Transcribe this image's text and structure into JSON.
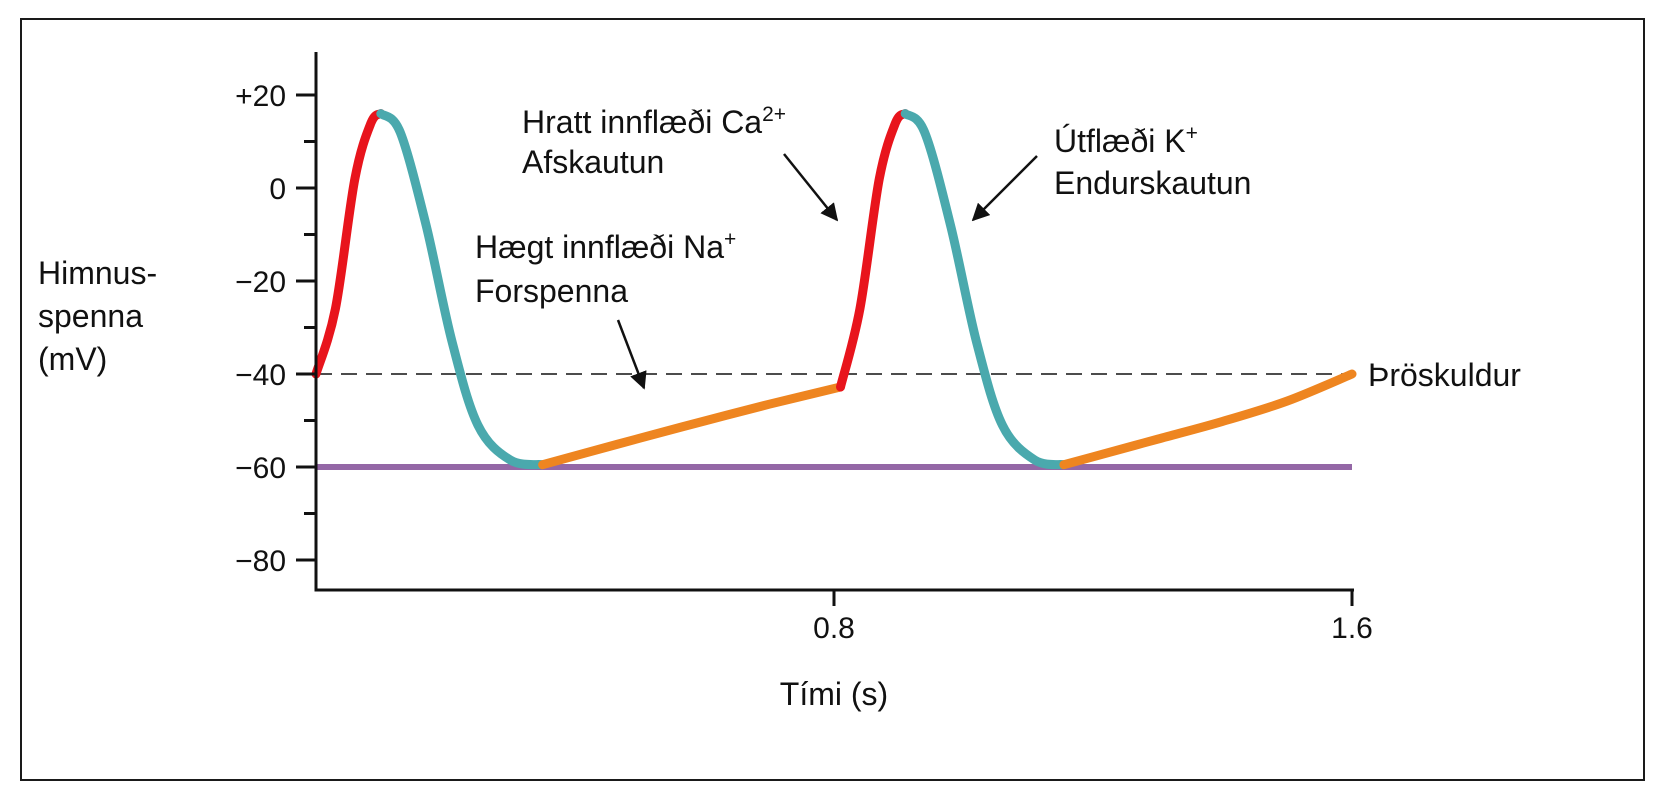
{
  "chart_data": {
    "type": "line",
    "title": "",
    "xlabel": "Tími (s)",
    "ylabel_lines": [
      "Himnus-",
      "spenna",
      "(mV)"
    ],
    "xlim": [
      0,
      1.6
    ],
    "ylim": [
      -88,
      28
    ],
    "x_ticks": [
      {
        "value": 0.8,
        "label": "0.8"
      },
      {
        "value": 1.6,
        "label": "1.6"
      }
    ],
    "y_ticks": [
      {
        "value": 20,
        "label": "+20"
      },
      {
        "value": 0,
        "label": "0"
      },
      {
        "value": -20,
        "label": "−20"
      },
      {
        "value": -40,
        "label": "−40"
      },
      {
        "value": -60,
        "label": "−60"
      },
      {
        "value": -80,
        "label": "−80"
      }
    ],
    "y_minor_ticks": [
      10,
      -10,
      -30,
      -50,
      -70
    ],
    "reference_lines": [
      {
        "kind": "threshold",
        "y": -40,
        "style": "dashed",
        "color": "#111111",
        "label": "Þröskuldur"
      },
      {
        "kind": "resting",
        "y": -60,
        "style": "solid",
        "color": "#9467a6"
      }
    ],
    "segments": [
      {
        "phase": "depolarization",
        "color": "#e8141c",
        "points": [
          [
            0.0,
            -40
          ],
          [
            0.03,
            -26
          ],
          [
            0.06,
            2
          ],
          [
            0.085,
            14
          ],
          [
            0.1,
            16
          ]
        ]
      },
      {
        "phase": "repolarization",
        "color": "#4aa9ad",
        "points": [
          [
            0.1,
            16
          ],
          [
            0.13,
            12
          ],
          [
            0.17,
            -8
          ],
          [
            0.21,
            -33
          ],
          [
            0.25,
            -51
          ],
          [
            0.3,
            -58.5
          ],
          [
            0.35,
            -59.5
          ]
        ]
      },
      {
        "phase": "prepotential",
        "color": "#ee8520",
        "points": [
          [
            0.35,
            -59.5
          ],
          [
            0.4,
            -57.6
          ],
          [
            0.5,
            -53.8
          ],
          [
            0.6,
            -50.1
          ],
          [
            0.7,
            -46.5
          ],
          [
            0.81,
            -42.8
          ]
        ]
      },
      {
        "phase": "depolarization",
        "color": "#e8141c",
        "points": [
          [
            0.81,
            -42.8
          ],
          [
            0.84,
            -26
          ],
          [
            0.87,
            2
          ],
          [
            0.895,
            14
          ],
          [
            0.91,
            16
          ]
        ]
      },
      {
        "phase": "repolarization",
        "color": "#4aa9ad",
        "points": [
          [
            0.91,
            16
          ],
          [
            0.94,
            12
          ],
          [
            0.98,
            -8
          ],
          [
            1.02,
            -33
          ],
          [
            1.06,
            -51
          ],
          [
            1.11,
            -58.5
          ],
          [
            1.155,
            -59.5
          ]
        ]
      },
      {
        "phase": "prepotential",
        "color": "#ee8520",
        "points": [
          [
            1.155,
            -59.5
          ],
          [
            1.2,
            -57.8
          ],
          [
            1.3,
            -54.0
          ],
          [
            1.4,
            -50.2
          ],
          [
            1.5,
            -45.8
          ],
          [
            1.6,
            -40
          ]
        ]
      }
    ],
    "annotations": [
      {
        "id": "prepotential",
        "line1": "Hægt innflæði Na",
        "sup": "+",
        "line2": "Forspenna",
        "arrow_to": [
          0.5,
          -54
        ]
      },
      {
        "id": "depolarization",
        "line1": "Hratt innflæði Ca",
        "sup": "2+",
        "line2": "Afskautun",
        "arrow_to": [
          0.82,
          -20
        ]
      },
      {
        "id": "repolarization",
        "line1": "Útflæði K",
        "sup": "+",
        "line2": "Endurskautun",
        "arrow_to": [
          0.98,
          -20
        ]
      }
    ]
  }
}
